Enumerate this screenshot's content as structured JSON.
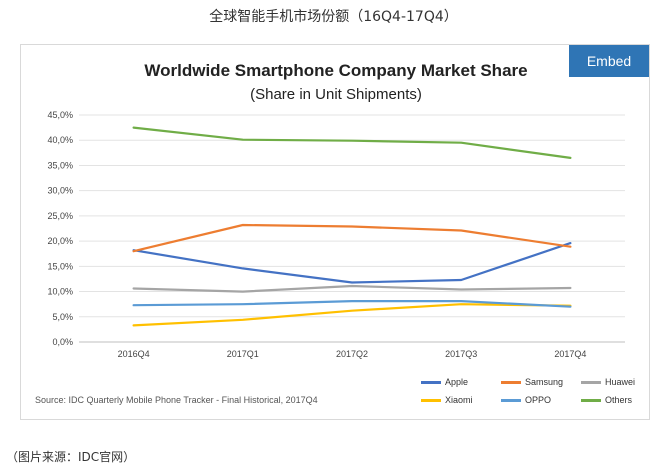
{
  "page": {
    "caption": "全球智能手机市场份额（16Q4-17Q4）",
    "footer": "（图片来源：IDC官网）"
  },
  "embed": {
    "label": "Embed"
  },
  "source_note": "Source: IDC Quarterly Mobile Phone Tracker - Final Historical, 2017Q4",
  "chart_data": {
    "type": "line",
    "title": "Worldwide Smartphone Company Market Share",
    "subtitle": "(Share in Unit Shipments)",
    "categories": [
      "2016Q4",
      "2017Q1",
      "2017Q2",
      "2017Q3",
      "2017Q4"
    ],
    "yticks": [
      "0,0%",
      "5,0%",
      "10,0%",
      "15,0%",
      "20,0%",
      "25,0%",
      "30,0%",
      "35,0%",
      "40,0%",
      "45,0%"
    ],
    "ylim": [
      0,
      45
    ],
    "grid": true,
    "legend_position": "bottom-right",
    "series": [
      {
        "name": "Apple",
        "color": "#4472c4",
        "values": [
          18.2,
          14.6,
          11.8,
          12.3,
          19.6
        ]
      },
      {
        "name": "Samsung",
        "color": "#ed7d31",
        "values": [
          18.0,
          23.2,
          22.9,
          22.1,
          18.9
        ]
      },
      {
        "name": "Huawei",
        "color": "#a5a5a5",
        "values": [
          10.6,
          10.0,
          11.1,
          10.4,
          10.7
        ]
      },
      {
        "name": "Xiaomi",
        "color": "#ffc000",
        "values": [
          3.3,
          4.4,
          6.2,
          7.5,
          7.2
        ]
      },
      {
        "name": "OPPO",
        "color": "#5b9bd5",
        "values": [
          7.3,
          7.5,
          8.1,
          8.1,
          7.0
        ]
      },
      {
        "name": "Others",
        "color": "#70ad47",
        "values": [
          42.5,
          40.1,
          39.9,
          39.5,
          36.5
        ]
      }
    ]
  }
}
